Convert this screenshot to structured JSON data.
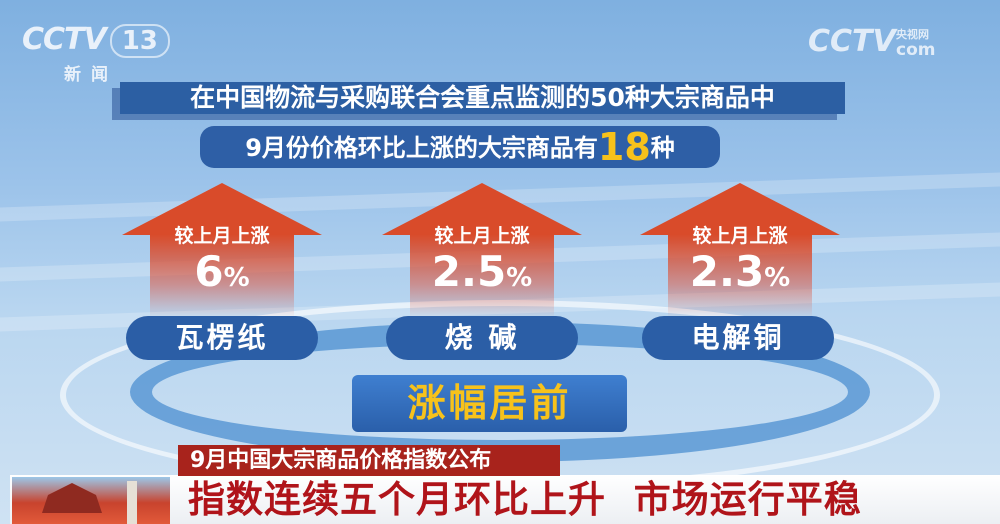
{
  "logo": {
    "channel": "CCTV",
    "number": "13",
    "sub": "新闻"
  },
  "watermark": {
    "brand": "CCTV",
    "cn": "央视网",
    "com": "com"
  },
  "title": "在中国物流与采购联合会重点监测的50种大宗商品中",
  "subtitle": {
    "prefix": "9月份价格环比上涨的大宗商品有",
    "count": "18",
    "suffix": "种"
  },
  "items": [
    {
      "label": "较上月上涨",
      "value": "6",
      "unit": "%",
      "name": "瓦楞纸"
    },
    {
      "label": "较上月上涨",
      "value": "2.5",
      "unit": "%",
      "name": "烧 碱"
    },
    {
      "label": "较上月上涨",
      "value": "2.3",
      "unit": "%",
      "name": "电解铜"
    }
  ],
  "badge": "涨幅居前",
  "lower_third": {
    "topic": "9月中国大宗商品价格指数公布",
    "headline": "指数连续五个月环比上升  市场运行平稳"
  },
  "colors": {
    "arrow": "#d94b2a",
    "pill": "#2b5ea6",
    "highlight": "#f7c21b",
    "headline": "#b0141a",
    "topic_bg": "#a8231c"
  }
}
